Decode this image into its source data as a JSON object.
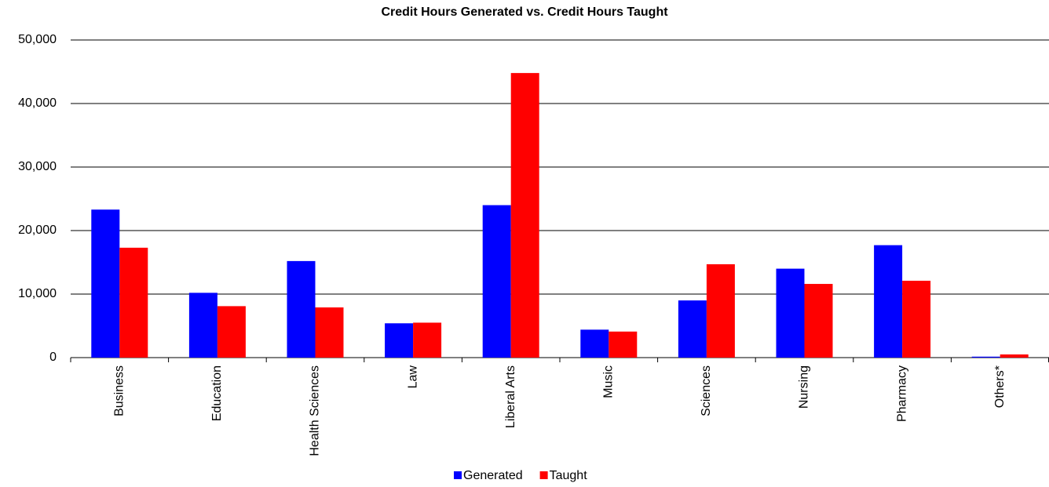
{
  "chart_data": {
    "type": "bar",
    "title": "Credit Hours Generated vs. Credit Hours Taught",
    "categories": [
      "Business",
      "Education",
      "Health Sciences",
      "Law",
      "Liberal Arts",
      "Music",
      "Sciences",
      "Nursing",
      "Pharmacy",
      "Others*"
    ],
    "series": [
      {
        "name": "Generated",
        "color": "#0000ff",
        "values": [
          23300,
          10200,
          15200,
          5400,
          24000,
          4400,
          9000,
          14000,
          17700,
          150
        ]
      },
      {
        "name": "Taught",
        "color": "#ff0000",
        "values": [
          17300,
          8100,
          7900,
          5500,
          44800,
          4100,
          14700,
          11600,
          12100,
          500
        ]
      }
    ],
    "ylim": [
      0,
      50000
    ],
    "yticks": [
      0,
      {
        "value": 10000,
        "label": "10,000"
      },
      {
        "value": 20000,
        "label": "20,000"
      },
      {
        "value": 30000,
        "label": "30,000"
      },
      {
        "value": 40000,
        "label": "40,000"
      },
      {
        "value": 50000,
        "label": "50,000"
      }
    ],
    "grid": true,
    "legend": "bottom"
  }
}
